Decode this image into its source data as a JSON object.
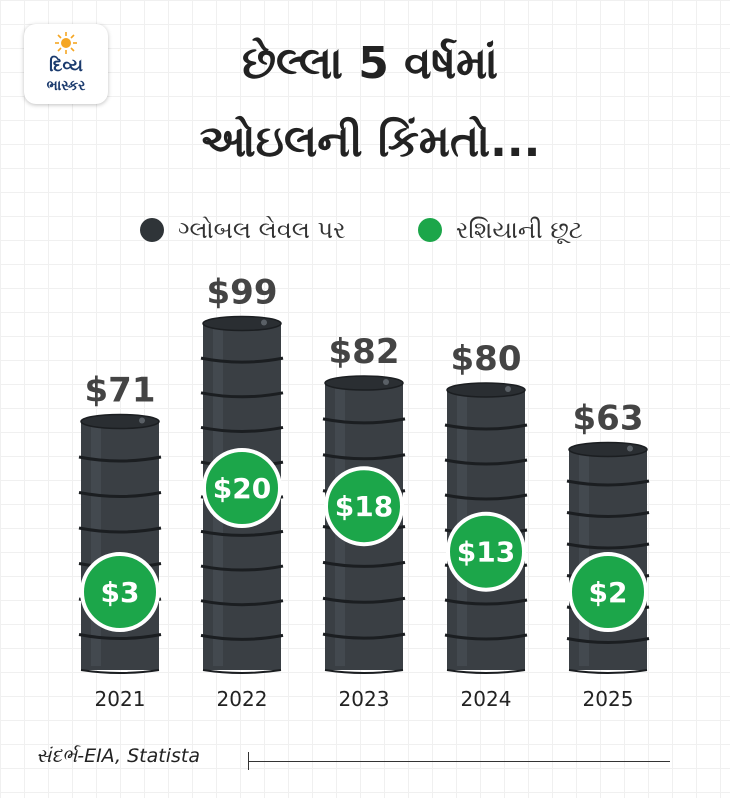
{
  "logo": {
    "line1": "દિવ્ય",
    "line2": "ભાસ્કર",
    "icon": "sun-icon"
  },
  "title": {
    "line1": "છેલ્લા 5 વર્ષમાં",
    "line2": "ઓઇલની કિંમતો..."
  },
  "legend": [
    {
      "label": "ગ્લોબલ લેવલ પર",
      "color": "#2f3438"
    },
    {
      "label": "રશિયાની છૂટ",
      "color": "#1ca64a"
    }
  ],
  "source": "સંદર્ભ-EIA, Statista",
  "colors": {
    "barrel": "#3a3f44",
    "discount": "#1ca64a",
    "label": "#444444"
  },
  "chart_data": {
    "type": "bar",
    "categories": [
      "2021",
      "2022",
      "2023",
      "2024",
      "2025"
    ],
    "series": [
      {
        "name": "ગ્લોબલ લેવલ પર",
        "values": [
          71,
          99,
          82,
          80,
          63
        ],
        "labels": [
          "$71",
          "$99",
          "$82",
          "$80",
          "$63"
        ]
      },
      {
        "name": "રશિયાની છૂટ",
        "values": [
          3,
          20,
          18,
          13,
          2
        ],
        "labels": [
          "$3",
          "$20",
          "$18",
          "$13",
          "$2"
        ]
      }
    ],
    "title": "છેલ્લા 5 વર્ષમાં ઓઇલની કિંમતો...",
    "grid": false,
    "legend_position": "top"
  }
}
